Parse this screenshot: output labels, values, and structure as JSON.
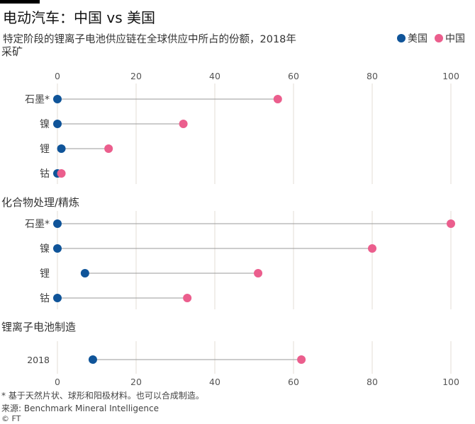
{
  "title": "电动汽车：中国 vs 美国",
  "subtitle": "特定阶段的锂离子电池供应链在全球供应中所占的份额，2018年",
  "legend": {
    "us": "美国",
    "china": "中国"
  },
  "colors": {
    "us": "#0f5499",
    "china": "#eb5e8d",
    "grid": "#e3ddd6",
    "connector": "#999999"
  },
  "footnote": "* 基于天然片状、球形和阳极材料。也可以合成制造。",
  "source": "来源: Benchmark Mineral Intelligence",
  "credit": "© FT",
  "chart_data": {
    "type": "dot-plot",
    "xlim": [
      0,
      100
    ],
    "ticks": [
      0,
      20,
      40,
      60,
      80,
      100
    ],
    "series": [
      {
        "name": "美国",
        "key": "us"
      },
      {
        "name": "中国",
        "key": "china"
      }
    ],
    "panels": [
      {
        "title": "采矿",
        "rows": [
          {
            "label": "石墨*",
            "us": 0,
            "china": 56
          },
          {
            "label": "镍",
            "us": 0,
            "china": 32
          },
          {
            "label": "锂",
            "us": 1,
            "china": 13
          },
          {
            "label": "钴",
            "us": 0,
            "china": 1
          }
        ]
      },
      {
        "title": "化合物处理/精炼",
        "rows": [
          {
            "label": "石墨*",
            "us": 0,
            "china": 100
          },
          {
            "label": "镍",
            "us": 0,
            "china": 80
          },
          {
            "label": "锂",
            "us": 7,
            "china": 51
          },
          {
            "label": "钴",
            "us": 0,
            "china": 33
          }
        ]
      },
      {
        "title": "锂离子电池制造",
        "rows": [
          {
            "label": "2018",
            "us": 9,
            "china": 62
          }
        ]
      }
    ]
  }
}
